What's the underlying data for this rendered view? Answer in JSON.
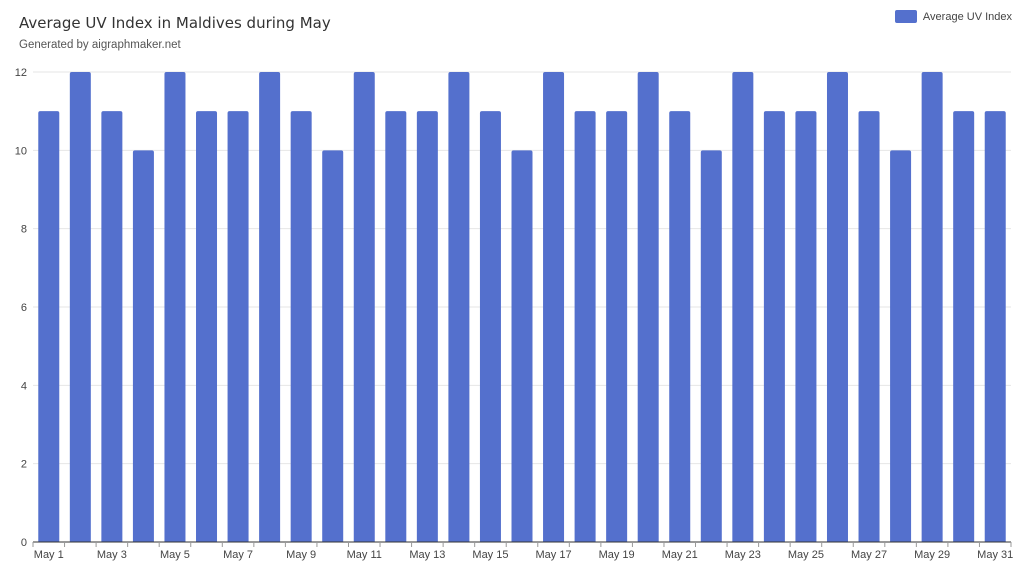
{
  "title": "Average UV Index in Maldives during May",
  "subtitle": "Generated by aigraphmaker.net",
  "legend": {
    "label": "Average UV Index",
    "position": "top-right"
  },
  "colors": {
    "bar": "#5470CD",
    "grid": "#e6e6e6",
    "axis": "#333333",
    "text": "#444444"
  },
  "chart_data": {
    "type": "bar",
    "title": "Average UV Index in Maldives during May",
    "subtitle": "Generated by aigraphmaker.net",
    "xlabel": "",
    "ylabel": "",
    "ylim": [
      0,
      12
    ],
    "yticks": [
      0,
      2,
      4,
      6,
      8,
      10,
      12
    ],
    "grid": true,
    "legend_position": "top-right",
    "categories": [
      "May 1",
      "May 2",
      "May 3",
      "May 4",
      "May 5",
      "May 6",
      "May 7",
      "May 8",
      "May 9",
      "May 10",
      "May 11",
      "May 12",
      "May 13",
      "May 14",
      "May 15",
      "May 16",
      "May 17",
      "May 18",
      "May 19",
      "May 20",
      "May 21",
      "May 22",
      "May 23",
      "May 24",
      "May 25",
      "May 26",
      "May 27",
      "May 28",
      "May 29",
      "May 30",
      "May 31"
    ],
    "xtick_labels": [
      "May 1",
      "May 3",
      "May 5",
      "May 7",
      "May 9",
      "May 11",
      "May 13",
      "May 15",
      "May 17",
      "May 19",
      "May 21",
      "May 23",
      "May 25",
      "May 27",
      "May 29",
      "May 31"
    ],
    "series": [
      {
        "name": "Average UV Index",
        "values": [
          11,
          12,
          11,
          10,
          12,
          11,
          11,
          12,
          11,
          10,
          12,
          11,
          11,
          12,
          11,
          10,
          12,
          11,
          11,
          12,
          11,
          10,
          12,
          11,
          11,
          12,
          11,
          10,
          12,
          11,
          11
        ]
      }
    ]
  }
}
